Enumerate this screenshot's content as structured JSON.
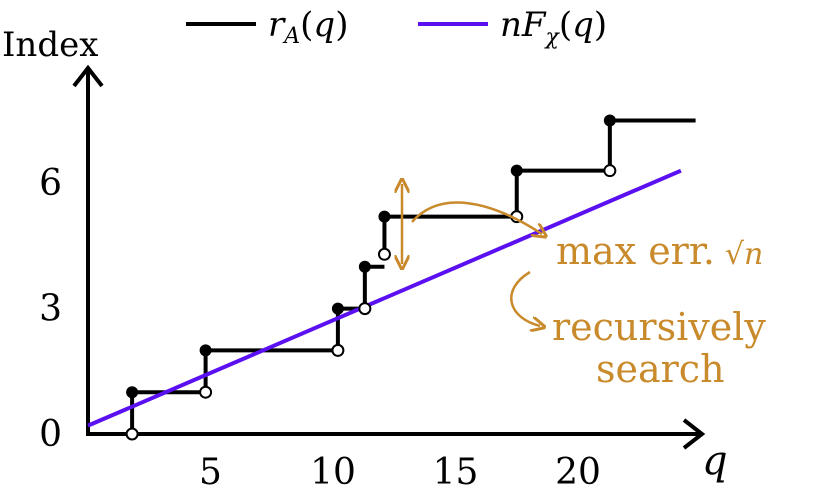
{
  "chart_data": {
    "type": "line",
    "ylabel": "Index",
    "xlabel": "q",
    "x_ticks": [
      {
        "value": 5,
        "label": "5"
      },
      {
        "value": 10,
        "label": "10"
      },
      {
        "value": 15,
        "label": "15"
      },
      {
        "value": 20,
        "label": "20"
      }
    ],
    "y_ticks": [
      {
        "value": 0,
        "label": "0"
      },
      {
        "value": 3,
        "label": "3"
      },
      {
        "value": 6,
        "label": "6"
      }
    ],
    "xlim": [
      0,
      25
    ],
    "ylim": [
      0,
      7.5
    ],
    "series": [
      {
        "name": "r_A(q)",
        "kind": "step",
        "color": "#000000",
        "points": [
          [
            1.8,
            1
          ],
          [
            4.8,
            2
          ],
          [
            10.2,
            3
          ],
          [
            11.3,
            4
          ],
          [
            12.1,
            5.2
          ],
          [
            17.5,
            6.3
          ],
          [
            21.3,
            7.5
          ],
          [
            24.8,
            7.5
          ]
        ],
        "open_points": [
          [
            1.8,
            0
          ],
          [
            4.8,
            1
          ],
          [
            10.2,
            2
          ],
          [
            11.3,
            3
          ],
          [
            12.1,
            4.3
          ],
          [
            17.5,
            5.2
          ],
          [
            21.3,
            6.3
          ]
        ]
      },
      {
        "name": "nF_χ(q)",
        "kind": "line",
        "color": "#5a10f0",
        "points": [
          [
            0,
            0.2
          ],
          [
            24.2,
            6.3
          ]
        ]
      }
    ],
    "annotations": [
      {
        "text_main": "max err.",
        "text_math": "√n",
        "color": "#c98a2b"
      },
      {
        "text_main": "recursively",
        "text_line2": "search",
        "color": "#c98a2b"
      }
    ]
  },
  "legend": {
    "items": [
      {
        "label": "r_A(q)",
        "color": "#000000"
      },
      {
        "label": "nF_χ(q)",
        "color": "#5a10f0"
      }
    ]
  },
  "colors": {
    "axis": "#000000",
    "annotation": "#c98a2b"
  }
}
